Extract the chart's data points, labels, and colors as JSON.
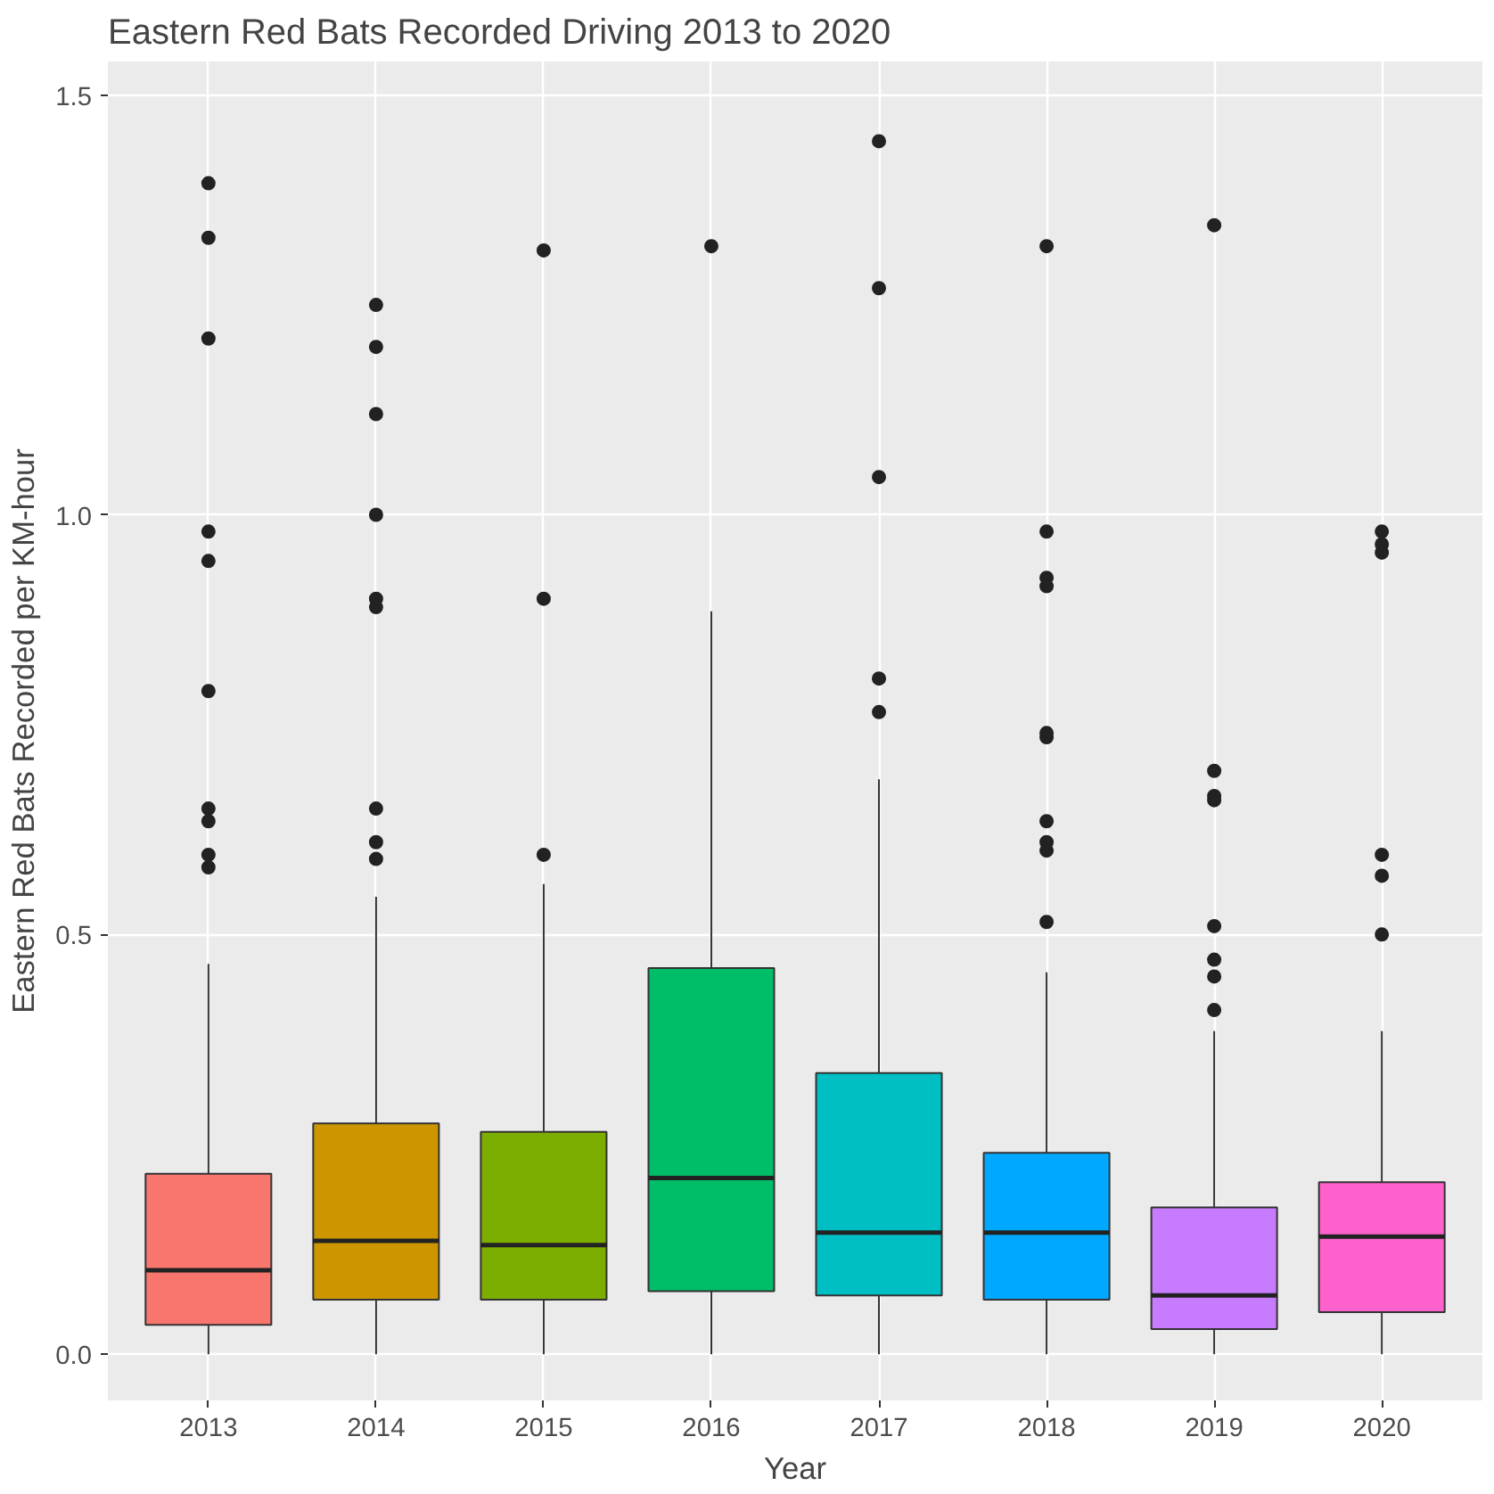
{
  "chart_data": {
    "type": "box",
    "title": "Eastern Red Bats Recorded Driving 2013 to 2020",
    "xlabel": "Year",
    "ylabel": "Eastern Red Bats Recorded per KM-hour",
    "categories": [
      "2013",
      "2014",
      "2015",
      "2016",
      "2017",
      "2018",
      "2019",
      "2020"
    ],
    "colors": [
      "#f8766d",
      "#cd9600",
      "#7cae00",
      "#00be67",
      "#00bfc4",
      "#00a9ff",
      "#c77cff",
      "#ff61cc"
    ],
    "boxes": [
      {
        "low": 0,
        "q1": 0.035,
        "median": 0.1,
        "q3": 0.215,
        "high": 0.465,
        "outliers": [
          1.395,
          1.33,
          1.21,
          0.98,
          0.945,
          0.79,
          0.65,
          0.635,
          0.595,
          0.58
        ]
      },
      {
        "low": 0,
        "q1": 0.065,
        "median": 0.135,
        "q3": 0.275,
        "high": 0.545,
        "outliers": [
          1.25,
          1.2,
          1.12,
          1.0,
          0.9,
          0.89,
          0.65,
          0.61,
          0.59
        ]
      },
      {
        "low": 0,
        "q1": 0.065,
        "median": 0.13,
        "q3": 0.265,
        "high": 0.56,
        "outliers": [
          1.315,
          0.9,
          0.595
        ]
      },
      {
        "low": 0,
        "q1": 0.075,
        "median": 0.21,
        "q3": 0.46,
        "high": 0.885,
        "outliers": [
          1.32
        ]
      },
      {
        "low": 0,
        "q1": 0.07,
        "median": 0.145,
        "q3": 0.335,
        "high": 0.685,
        "outliers": [
          1.445,
          1.27,
          1.045,
          0.805,
          0.765
        ]
      },
      {
        "low": 0,
        "q1": 0.065,
        "median": 0.145,
        "q3": 0.24,
        "high": 0.455,
        "outliers": [
          1.32,
          0.98,
          0.925,
          0.915,
          0.74,
          0.735,
          0.635,
          0.61,
          0.6,
          0.515
        ]
      },
      {
        "low": 0,
        "q1": 0.03,
        "median": 0.07,
        "q3": 0.175,
        "high": 0.385,
        "outliers": [
          1.345,
          0.695,
          0.665,
          0.66,
          0.51,
          0.47,
          0.45,
          0.41
        ]
      },
      {
        "low": 0,
        "q1": 0.05,
        "median": 0.14,
        "q3": 0.205,
        "high": 0.385,
        "outliers": [
          0.98,
          0.965,
          0.955,
          0.595,
          0.57,
          0.5
        ]
      }
    ],
    "ylim": [
      -0.055,
      1.54
    ],
    "yticks": [
      {
        "value": 0,
        "label": "0.0"
      },
      {
        "value": 0.5,
        "label": "0.5"
      },
      {
        "value": 1.0,
        "label": "1.0"
      },
      {
        "value": 1.5,
        "label": "1.5"
      }
    ],
    "grid": true
  }
}
